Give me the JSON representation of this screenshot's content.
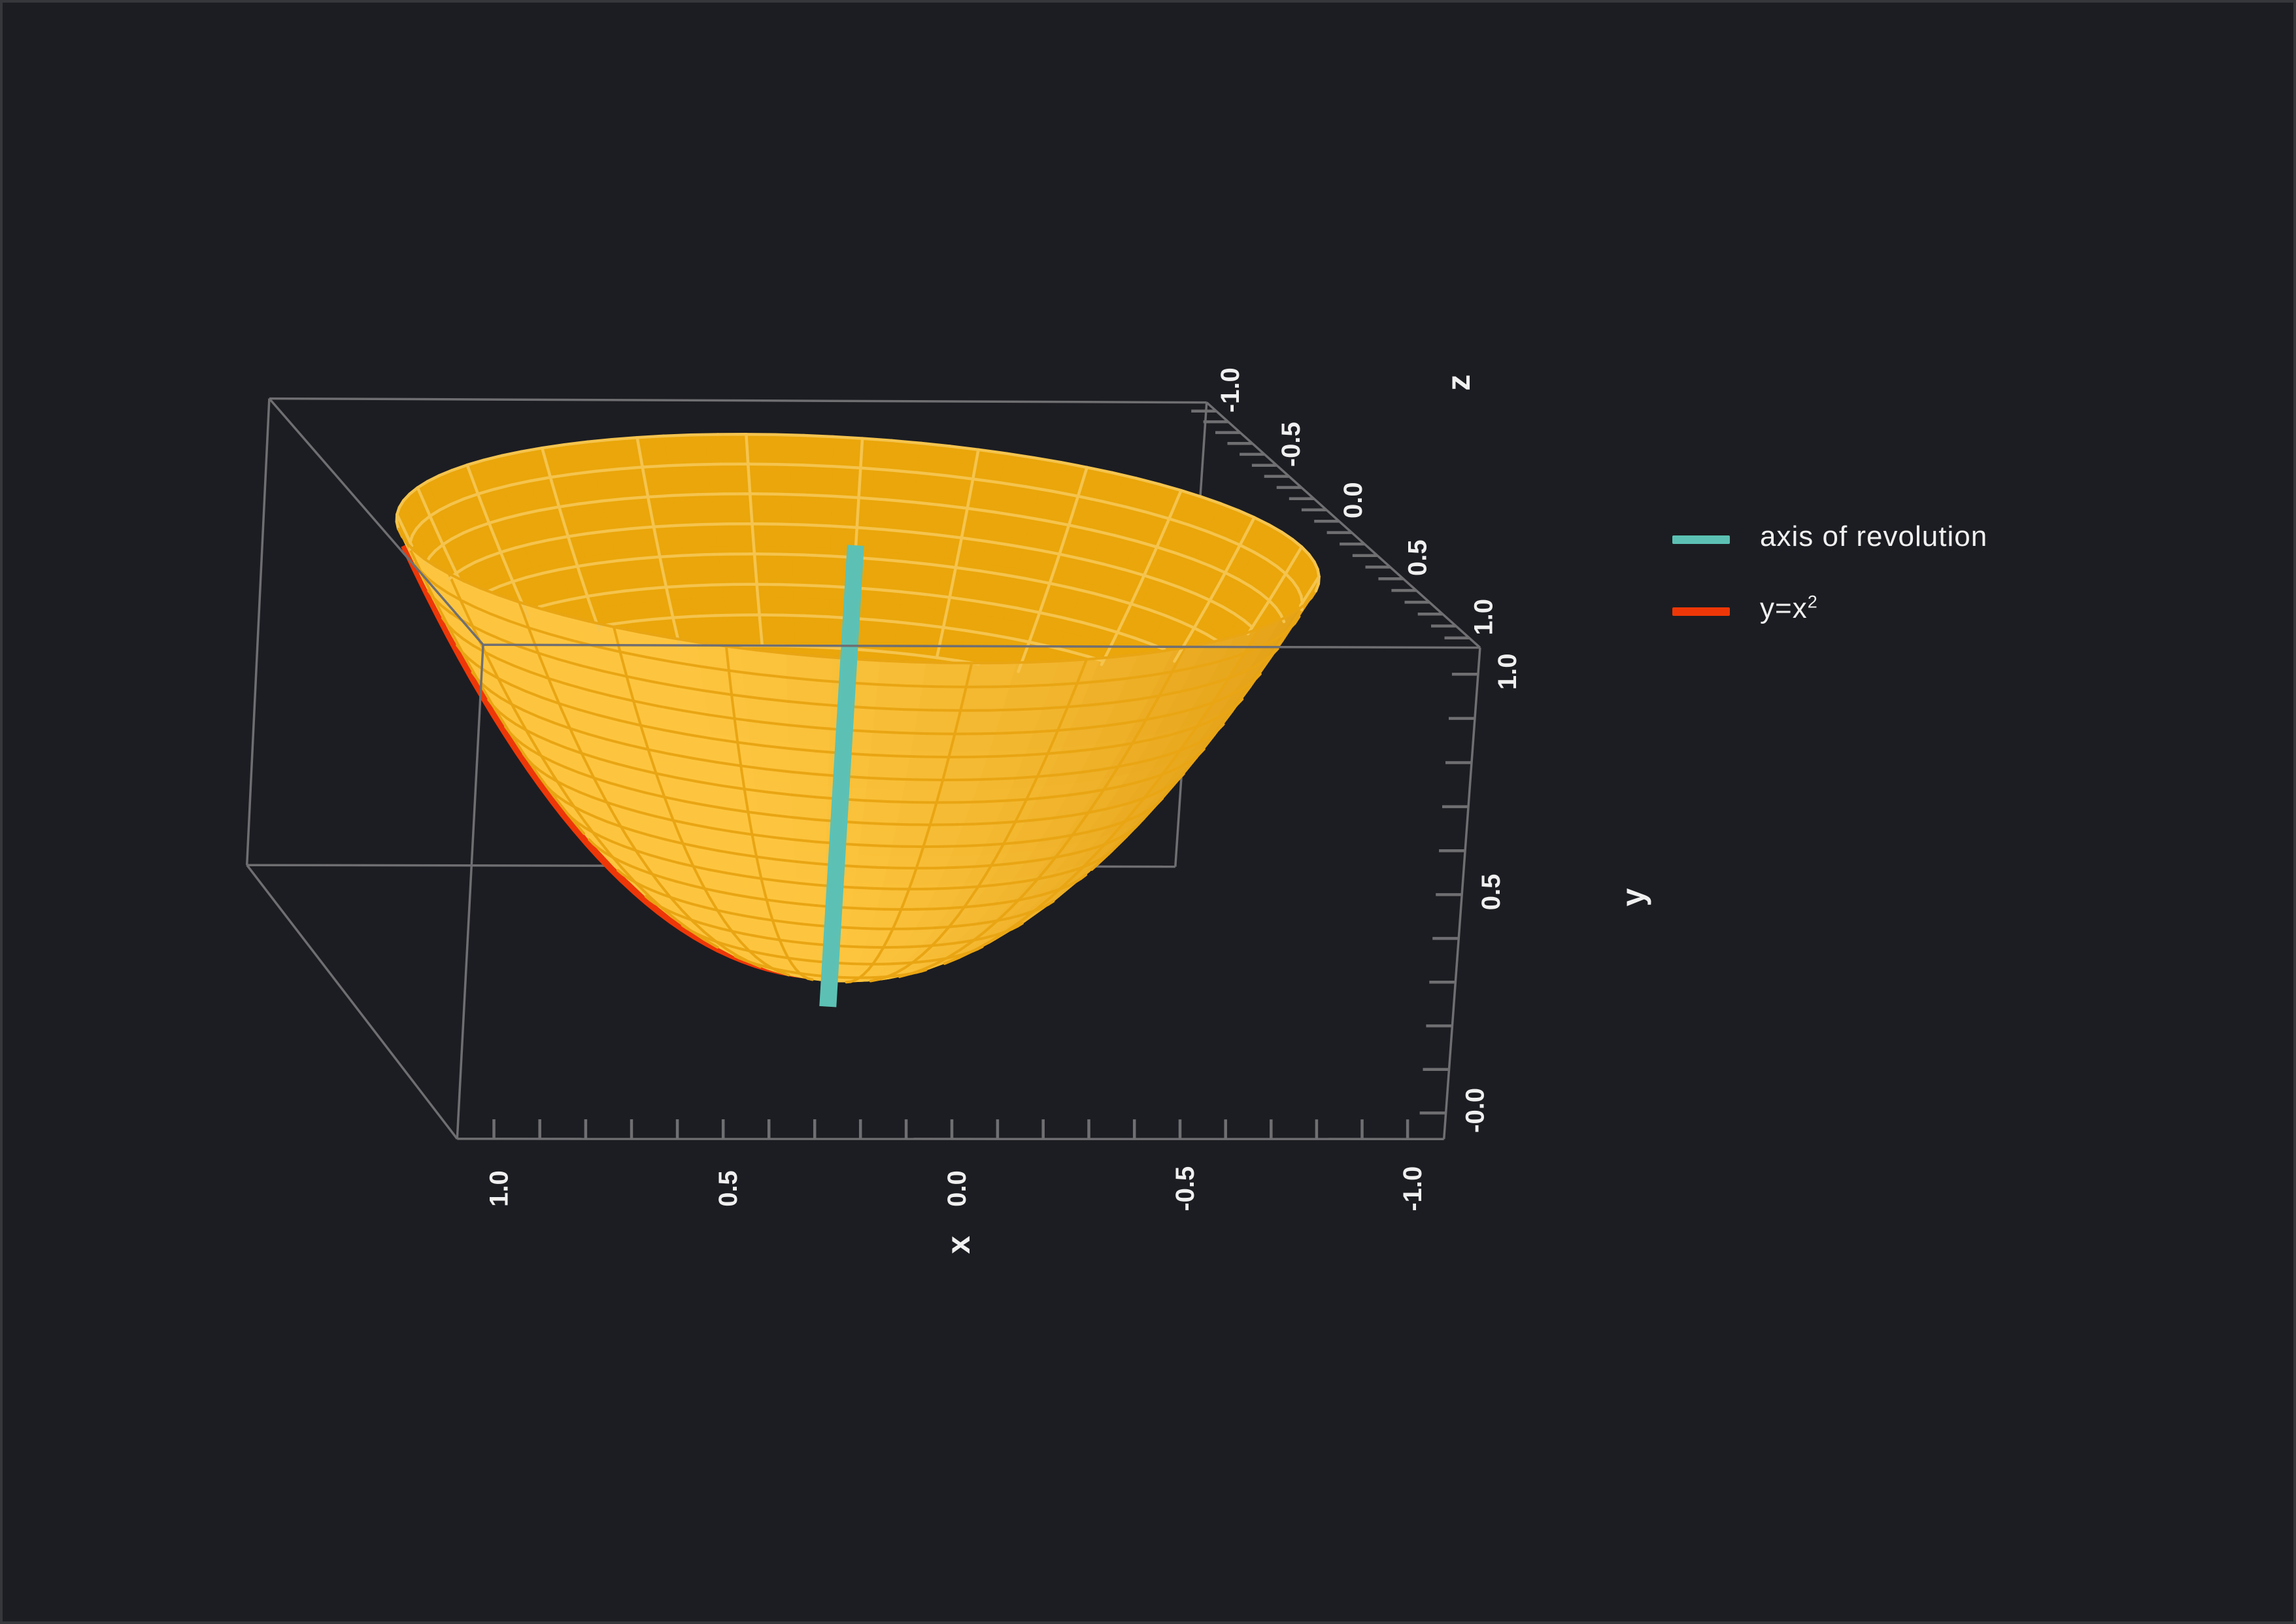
{
  "app": {
    "background": "#1c1d22",
    "frame_border": "#35373b"
  },
  "chart_data": {
    "type": "3d-surface",
    "title": "",
    "surface": {
      "name": "surface of revolution",
      "equation": "y = x^2 + z^2",
      "radial_domain": [
        0,
        1
      ],
      "mesh": {
        "meridians": 24,
        "rings": 16,
        "fill_segments_angular": 64,
        "fill_segments_radial": 16
      },
      "colors": {
        "exterior_fill": "#fdc53f",
        "exterior_fill_shaded": "#e09d12",
        "exterior_wire": "#e9a513",
        "interior_fill": "#eaa60a",
        "interior_wire": "#f5c44e"
      }
    },
    "lines": [
      {
        "name": "axis of revolution",
        "color": "#5cc1b4",
        "from": [
          0,
          -0.08,
          0
        ],
        "to": [
          0,
          1.0,
          0
        ],
        "width": 26
      },
      {
        "name": "y=x^2",
        "equation": "y = x^2",
        "color": "#ee3708",
        "z": 0,
        "x_range": [
          -1,
          1
        ],
        "x_visible": [
          0,
          1
        ],
        "width": 22
      }
    ],
    "axes": {
      "x": {
        "title": "x",
        "range": [
          -1,
          1
        ],
        "tick_step": 0.1,
        "labels": [
          {
            "v": 1,
            "t": "1.0"
          },
          {
            "v": 0.5,
            "t": "0.5"
          },
          {
            "v": 0,
            "t": "0.0"
          },
          {
            "v": -0.5,
            "t": "-0.5"
          },
          {
            "v": -1,
            "t": "-1.0"
          }
        ]
      },
      "y": {
        "title": "y",
        "range": [
          0,
          1
        ],
        "tick_step": 0.1,
        "labels": [
          {
            "v": 1,
            "t": "1.0"
          },
          {
            "v": 0.5,
            "t": "0.5"
          },
          {
            "v": 0,
            "t": "-0.0"
          }
        ]
      },
      "z": {
        "title": "z",
        "range": [
          -1,
          1
        ],
        "tick_step": 0.1,
        "labels": [
          {
            "v": -1,
            "t": "-1.0"
          },
          {
            "v": -0.5,
            "t": "-0.5"
          },
          {
            "v": 0,
            "t": "0.0"
          },
          {
            "v": 0.5,
            "t": "0.5"
          },
          {
            "v": 1,
            "t": "1.0"
          }
        ]
      }
    },
    "style": {
      "edge_color": "#6f6f72",
      "edge_width": 3.5,
      "tick_color": "#6f6f72",
      "tick_width": 4.5,
      "tick_len": {
        "x": 30,
        "y": 40,
        "z": 38
      },
      "label_color": "#f0f0f0",
      "tick_font": 40,
      "title_font": 50
    },
    "projection": {
      "box_data_extent": {
        "x": [
          -1.08,
          1.08
        ],
        "y": [
          -0.06,
          1.06
        ],
        "z": [
          -1.08,
          1.08
        ]
      },
      "anchors": [
        {
          "data": [
            1.08,
            1.06,
            -1.08
          ],
          "px": [
            408,
            605
          ]
        },
        {
          "data": [
            -1.08,
            1.06,
            -1.08
          ],
          "px": [
            1834,
            613
          ]
        },
        {
          "data": [
            -1.08,
            1.06,
            1.08
          ],
          "px": [
            2266,
            985
          ]
        },
        {
          "data": [
            1.08,
            1.06,
            1.08
          ],
          "px": [
            737,
            983
          ]
        },
        {
          "data": [
            1.08,
            -0.06,
            -1.08
          ],
          "px": [
            373,
            1320
          ]
        },
        {
          "data": [
            -1.08,
            -0.06,
            -1.08
          ],
          "px": [
            1802,
            1320
          ]
        },
        {
          "data": [
            -1.08,
            -0.06,
            1.08
          ],
          "px": [
            2198,
            1740
          ]
        },
        {
          "data": [
            1.08,
            -0.06,
            1.08
          ],
          "px": [
            694,
            1737
          ]
        }
      ]
    }
  },
  "legend": {
    "items": [
      {
        "label": "axis of revolution",
        "label_sup": "",
        "color": "#5cc1b4"
      },
      {
        "label": "y=x",
        "label_sup": "2",
        "color": "#ee3708"
      }
    ]
  }
}
